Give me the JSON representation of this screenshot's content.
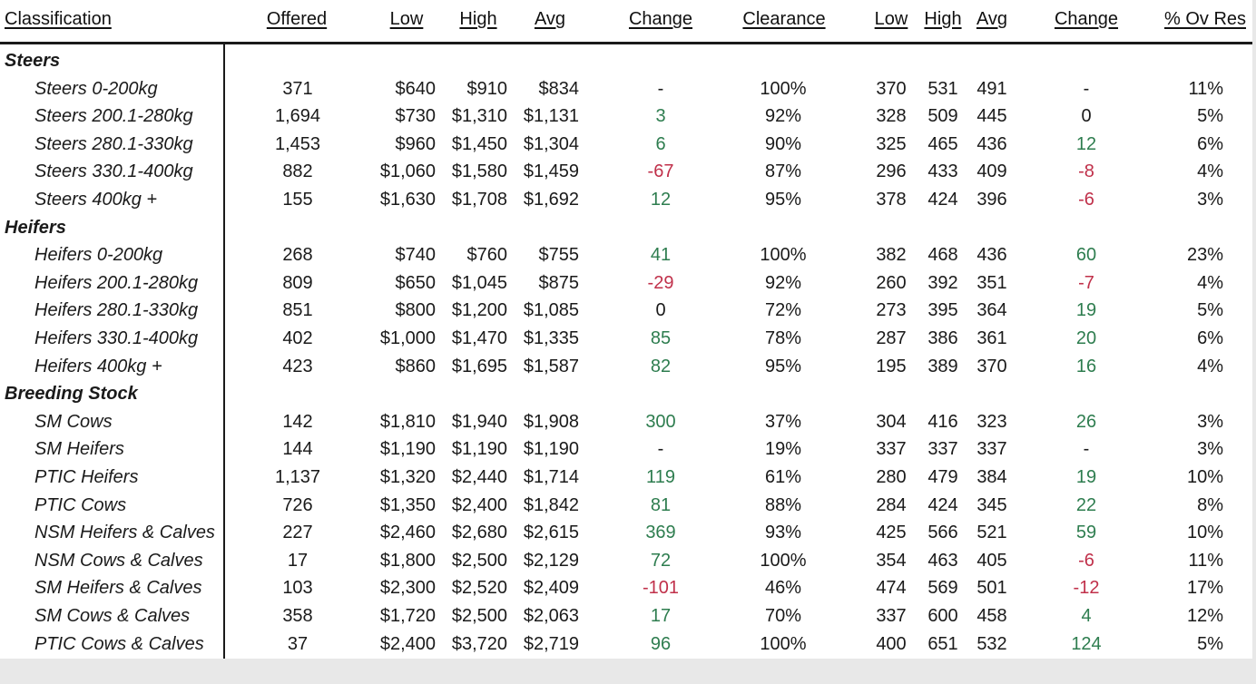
{
  "headers": {
    "classification": "Classification",
    "offered": "Offered",
    "low": "Low",
    "high": "High",
    "avg": "Avg",
    "change": "Change",
    "clearance": "Clearance",
    "low_ckg": "Low",
    "high_ckg": "High",
    "avg_ckg": "Avg",
    "change_ckg": "Change",
    "ov_res": "% Ov Res"
  },
  "groups": [
    {
      "name": "Steers",
      "rows": [
        {
          "label": "Steers 0-200kg",
          "offered": "371",
          "low": "$640",
          "high": "$910",
          "avg": "$834",
          "change": "-",
          "change_sign": "none",
          "clearance": "100%",
          "low_ckg": "370",
          "high_ckg": "531",
          "avg_ckg": "491",
          "change_ckg": "-",
          "change_ckg_sign": "none",
          "ov_res": "11%"
        },
        {
          "label": "Steers 200.1-280kg",
          "offered": "1,694",
          "low": "$730",
          "high": "$1,310",
          "avg": "$1,131",
          "change": "3",
          "change_sign": "pos",
          "clearance": "92%",
          "low_ckg": "328",
          "high_ckg": "509",
          "avg_ckg": "445",
          "change_ckg": "0",
          "change_ckg_sign": "none",
          "ov_res": "5%"
        },
        {
          "label": "Steers 280.1-330kg",
          "offered": "1,453",
          "low": "$960",
          "high": "$1,450",
          "avg": "$1,304",
          "change": "6",
          "change_sign": "pos",
          "clearance": "90%",
          "low_ckg": "325",
          "high_ckg": "465",
          "avg_ckg": "436",
          "change_ckg": "12",
          "change_ckg_sign": "pos",
          "ov_res": "6%"
        },
        {
          "label": "Steers 330.1-400kg",
          "offered": "882",
          "low": "$1,060",
          "high": "$1,580",
          "avg": "$1,459",
          "change": "-67",
          "change_sign": "neg",
          "clearance": "87%",
          "low_ckg": "296",
          "high_ckg": "433",
          "avg_ckg": "409",
          "change_ckg": "-8",
          "change_ckg_sign": "neg",
          "ov_res": "4%"
        },
        {
          "label": "Steers 400kg +",
          "offered": "155",
          "low": "$1,630",
          "high": "$1,708",
          "avg": "$1,692",
          "change": "12",
          "change_sign": "pos",
          "clearance": "95%",
          "low_ckg": "378",
          "high_ckg": "424",
          "avg_ckg": "396",
          "change_ckg": "-6",
          "change_ckg_sign": "neg",
          "ov_res": "3%"
        }
      ]
    },
    {
      "name": "Heifers",
      "rows": [
        {
          "label": "Heifers 0-200kg",
          "offered": "268",
          "low": "$740",
          "high": "$760",
          "avg": "$755",
          "change": "41",
          "change_sign": "pos",
          "clearance": "100%",
          "low_ckg": "382",
          "high_ckg": "468",
          "avg_ckg": "436",
          "change_ckg": "60",
          "change_ckg_sign": "pos",
          "ov_res": "23%"
        },
        {
          "label": "Heifers 200.1-280kg",
          "offered": "809",
          "low": "$650",
          "high": "$1,045",
          "avg": "$875",
          "change": "-29",
          "change_sign": "neg",
          "clearance": "92%",
          "low_ckg": "260",
          "high_ckg": "392",
          "avg_ckg": "351",
          "change_ckg": "-7",
          "change_ckg_sign": "neg",
          "ov_res": "4%"
        },
        {
          "label": "Heifers 280.1-330kg",
          "offered": "851",
          "low": "$800",
          "high": "$1,200",
          "avg": "$1,085",
          "change": "0",
          "change_sign": "none",
          "clearance": "72%",
          "low_ckg": "273",
          "high_ckg": "395",
          "avg_ckg": "364",
          "change_ckg": "19",
          "change_ckg_sign": "pos",
          "ov_res": "5%"
        },
        {
          "label": "Heifers 330.1-400kg",
          "offered": "402",
          "low": "$1,000",
          "high": "$1,470",
          "avg": "$1,335",
          "change": "85",
          "change_sign": "pos",
          "clearance": "78%",
          "low_ckg": "287",
          "high_ckg": "386",
          "avg_ckg": "361",
          "change_ckg": "20",
          "change_ckg_sign": "pos",
          "ov_res": "6%"
        },
        {
          "label": "Heifers 400kg +",
          "offered": "423",
          "low": "$860",
          "high": "$1,695",
          "avg": "$1,587",
          "change": "82",
          "change_sign": "pos",
          "clearance": "95%",
          "low_ckg": "195",
          "high_ckg": "389",
          "avg_ckg": "370",
          "change_ckg": "16",
          "change_ckg_sign": "pos",
          "ov_res": "4%"
        }
      ]
    },
    {
      "name": "Breeding Stock",
      "rows": [
        {
          "label": "SM Cows",
          "offered": "142",
          "low": "$1,810",
          "high": "$1,940",
          "avg": "$1,908",
          "change": "300",
          "change_sign": "pos",
          "clearance": "37%",
          "low_ckg": "304",
          "high_ckg": "416",
          "avg_ckg": "323",
          "change_ckg": "26",
          "change_ckg_sign": "pos",
          "ov_res": "3%"
        },
        {
          "label": "SM Heifers",
          "offered": "144",
          "low": "$1,190",
          "high": "$1,190",
          "avg": "$1,190",
          "change": "-",
          "change_sign": "none",
          "clearance": "19%",
          "low_ckg": "337",
          "high_ckg": "337",
          "avg_ckg": "337",
          "change_ckg": "-",
          "change_ckg_sign": "none",
          "ov_res": "3%"
        },
        {
          "label": "PTIC Heifers",
          "offered": "1,137",
          "low": "$1,320",
          "high": "$2,440",
          "avg": "$1,714",
          "change": "119",
          "change_sign": "pos",
          "clearance": "61%",
          "low_ckg": "280",
          "high_ckg": "479",
          "avg_ckg": "384",
          "change_ckg": "19",
          "change_ckg_sign": "pos",
          "ov_res": "10%"
        },
        {
          "label": "PTIC Cows",
          "offered": "726",
          "low": "$1,350",
          "high": "$2,400",
          "avg": "$1,842",
          "change": "81",
          "change_sign": "pos",
          "clearance": "88%",
          "low_ckg": "284",
          "high_ckg": "424",
          "avg_ckg": "345",
          "change_ckg": "22",
          "change_ckg_sign": "pos",
          "ov_res": "8%"
        },
        {
          "label": "NSM Heifers & Calves",
          "offered": "227",
          "low": "$2,460",
          "high": "$2,680",
          "avg": "$2,615",
          "change": "369",
          "change_sign": "pos",
          "clearance": "93%",
          "low_ckg": "425",
          "high_ckg": "566",
          "avg_ckg": "521",
          "change_ckg": "59",
          "change_ckg_sign": "pos",
          "ov_res": "10%"
        },
        {
          "label": "NSM Cows & Calves",
          "offered": "17",
          "low": "$1,800",
          "high": "$2,500",
          "avg": "$2,129",
          "change": "72",
          "change_sign": "pos",
          "clearance": "100%",
          "low_ckg": "354",
          "high_ckg": "463",
          "avg_ckg": "405",
          "change_ckg": "-6",
          "change_ckg_sign": "neg",
          "ov_res": "11%"
        },
        {
          "label": "SM Heifers & Calves",
          "offered": "103",
          "low": "$2,300",
          "high": "$2,520",
          "avg": "$2,409",
          "change": "-101",
          "change_sign": "neg",
          "clearance": "46%",
          "low_ckg": "474",
          "high_ckg": "569",
          "avg_ckg": "501",
          "change_ckg": "-12",
          "change_ckg_sign": "neg",
          "ov_res": "17%"
        },
        {
          "label": "SM Cows & Calves",
          "offered": "358",
          "low": "$1,720",
          "high": "$2,500",
          "avg": "$2,063",
          "change": "17",
          "change_sign": "pos",
          "clearance": "70%",
          "low_ckg": "337",
          "high_ckg": "600",
          "avg_ckg": "458",
          "change_ckg": "4",
          "change_ckg_sign": "pos",
          "ov_res": "12%"
        },
        {
          "label": "PTIC Cows & Calves",
          "offered": "37",
          "low": "$2,400",
          "high": "$3,720",
          "avg": "$2,719",
          "change": "96",
          "change_sign": "pos",
          "clearance": "100%",
          "low_ckg": "400",
          "high_ckg": "651",
          "avg_ckg": "532",
          "change_ckg": "124",
          "change_ckg_sign": "pos",
          "ov_res": "5%"
        }
      ]
    }
  ],
  "colors": {
    "positive": "#2e7d4f",
    "negative": "#c0304a",
    "text": "#1a1a1a"
  }
}
